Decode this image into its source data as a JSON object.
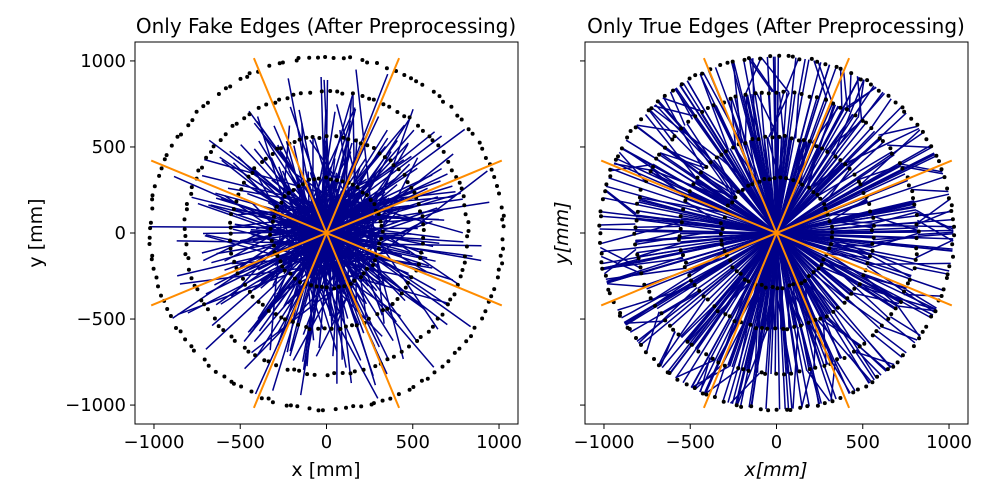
{
  "chart_data": [
    {
      "type": "scatter",
      "title": "Only Fake Edges (After Preprocessing)",
      "xlabel": "x [mm]",
      "ylabel": "y [mm]",
      "xlim": [
        -1110,
        1110
      ],
      "ylim": [
        -1110,
        1110
      ],
      "xticks": [
        -1000,
        -500,
        0,
        500,
        1000
      ],
      "yticks": [
        -1000,
        -500,
        0,
        500,
        1000
      ],
      "xtick_labels": [
        "−1000",
        "−500",
        "0",
        "500",
        "1000"
      ],
      "ytick_labels": [
        "−1000",
        "−500",
        "0",
        "500",
        "1000"
      ],
      "hit_layers_radius": [
        320,
        560,
        820,
        1025
      ],
      "sector_boundary_angles_deg": [
        22.5,
        67.5,
        112.5,
        157.5
      ],
      "sector_line_radius": 1100,
      "edge_count_shown": 350,
      "edges_mode": "fake",
      "colors": {
        "edges": "#00008b",
        "hits": "#000000",
        "sectors": "#ff8c00"
      }
    },
    {
      "type": "scatter",
      "title": "Only True Edges (After Preprocessing)",
      "xlabel": "x[mm]",
      "ylabel": "y[mm]",
      "xlim": [
        -1110,
        1110
      ],
      "ylim": [
        -1110,
        1110
      ],
      "xticks": [
        -1000,
        -500,
        0,
        500,
        1000
      ],
      "yticks": [
        -1000,
        -500,
        0,
        500,
        1000
      ],
      "xtick_labels": [
        "−1000",
        "−500",
        "0",
        "500",
        "1000"
      ],
      "ytick_labels": [],
      "hit_layers_radius": [
        320,
        560,
        820,
        1025
      ],
      "sector_boundary_angles_deg": [
        22.5,
        67.5,
        112.5,
        157.5
      ],
      "sector_line_radius": 1100,
      "edge_count_shown": 650,
      "edges_mode": "true",
      "colors": {
        "edges": "#00008b",
        "hits": "#000000",
        "sectors": "#ff8c00"
      }
    }
  ]
}
